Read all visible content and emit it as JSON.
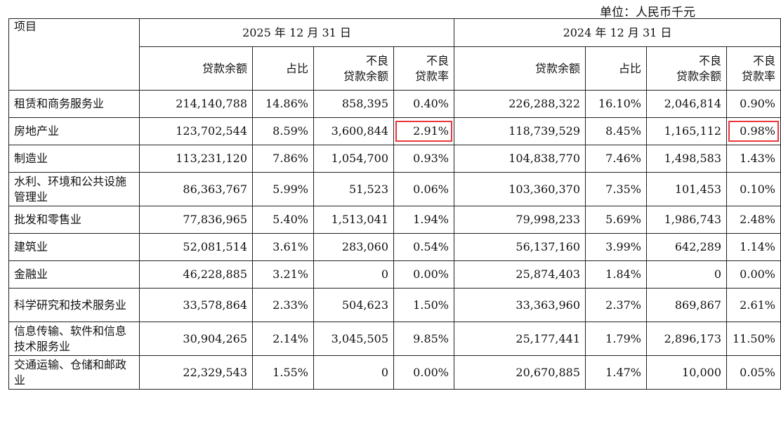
{
  "unit_label": "单位：人民币千元",
  "header": {
    "item": "项目",
    "period_2025": "2025 年 12 月 31 日",
    "period_2024": "2024 年 12 月 31 日",
    "col_balance": "贷款余额",
    "col_share": "占比",
    "col_npl_line1": "不良",
    "col_npl_line2": "贷款余额",
    "col_nplr_line1": "不良",
    "col_nplr_line2": "贷款率"
  },
  "highlight_color": "#e8373d",
  "rows": [
    {
      "name": "租赁和商务服务业",
      "y2025": {
        "balance": "214,140,788",
        "share": "14.86%",
        "npl": "858,395",
        "rate": "0.40%"
      },
      "y2024": {
        "balance": "226,288,322",
        "share": "16.10%",
        "npl": "2,046,814",
        "rate": "0.90%"
      }
    },
    {
      "name": "房地产业",
      "y2025": {
        "balance": "123,702,544",
        "share": "8.59%",
        "npl": "3,600,844",
        "rate": "2.91%"
      },
      "y2024": {
        "balance": "118,739,529",
        "share": "8.45%",
        "npl": "1,165,112",
        "rate": "0.98%"
      }
    },
    {
      "name": "制造业",
      "y2025": {
        "balance": "113,231,120",
        "share": "7.86%",
        "npl": "1,054,700",
        "rate": "0.93%"
      },
      "y2024": {
        "balance": "104,838,770",
        "share": "7.46%",
        "npl": "1,498,583",
        "rate": "1.43%"
      }
    },
    {
      "name": "水利、环境和公共设施管理业",
      "y2025": {
        "balance": "86,363,767",
        "share": "5.99%",
        "npl": "51,523",
        "rate": "0.06%"
      },
      "y2024": {
        "balance": "103,360,370",
        "share": "7.35%",
        "npl": "101,453",
        "rate": "0.10%"
      }
    },
    {
      "name": "批发和零售业",
      "y2025": {
        "balance": "77,836,965",
        "share": "5.40%",
        "npl": "1,513,041",
        "rate": "1.94%"
      },
      "y2024": {
        "balance": "79,998,233",
        "share": "5.69%",
        "npl": "1,986,743",
        "rate": "2.48%"
      }
    },
    {
      "name": "建筑业",
      "y2025": {
        "balance": "52,081,514",
        "share": "3.61%",
        "npl": "283,060",
        "rate": "0.54%"
      },
      "y2024": {
        "balance": "56,137,160",
        "share": "3.99%",
        "npl": "642,289",
        "rate": "1.14%"
      }
    },
    {
      "name": "金融业",
      "y2025": {
        "balance": "46,228,885",
        "share": "3.21%",
        "npl": "0",
        "rate": "0.00%"
      },
      "y2024": {
        "balance": "25,874,403",
        "share": "1.84%",
        "npl": "0",
        "rate": "0.00%"
      }
    },
    {
      "name": "科学研究和技术服务业",
      "y2025": {
        "balance": "33,578,864",
        "share": "2.33%",
        "npl": "504,623",
        "rate": "1.50%"
      },
      "y2024": {
        "balance": "33,363,960",
        "share": "2.37%",
        "npl": "869,867",
        "rate": "2.61%"
      }
    },
    {
      "name": "信息传输、软件和信息技术服务业",
      "y2025": {
        "balance": "30,904,265",
        "share": "2.14%",
        "npl": "3,045,505",
        "rate": "9.85%"
      },
      "y2024": {
        "balance": "25,177,441",
        "share": "1.79%",
        "npl": "2,896,173",
        "rate": "11.50%"
      }
    },
    {
      "name": "交通运输、仓储和邮政业",
      "y2025": {
        "balance": "22,329,543",
        "share": "1.55%",
        "npl": "0",
        "rate": "0.00%"
      },
      "y2024": {
        "balance": "20,670,885",
        "share": "1.47%",
        "npl": "10,000",
        "rate": "0.05%"
      }
    }
  ]
}
